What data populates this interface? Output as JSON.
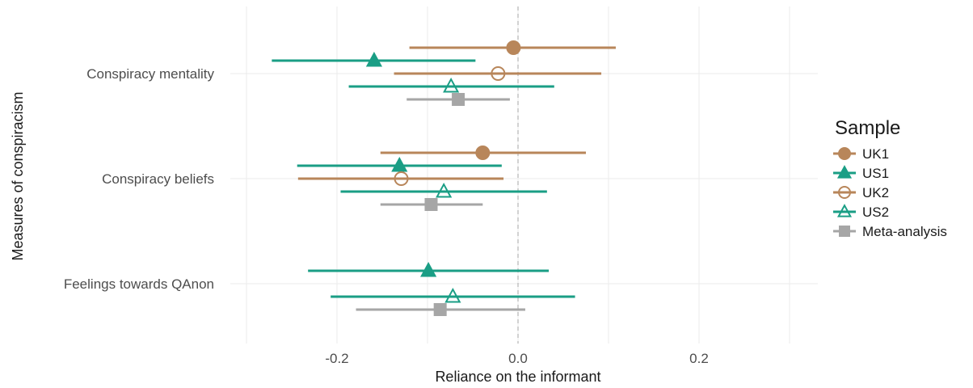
{
  "chart_data": {
    "type": "forest",
    "xlabel": "Reliance on the informant",
    "ylabel": "Measures of conspiracism",
    "xlim": [
      -0.3,
      0.33
    ],
    "x_ticks": [
      -0.2,
      0.0,
      0.2
    ],
    "x_tick_labels": [
      "-0.2",
      "0.0",
      "0.2"
    ],
    "reference_line": 0,
    "grid": true,
    "legend": {
      "title": "Sample",
      "position": "right"
    },
    "categories": [
      "Conspiracy mentality",
      "Conspiracy beliefs",
      "Feelings towards QAnon"
    ],
    "series": [
      {
        "name": "UK1",
        "color": "#b8865a",
        "shape": "circle",
        "filled": true,
        "points": [
          {
            "category": "Conspiracy mentality",
            "estimate": -0.005,
            "lower": -0.12,
            "upper": 0.108
          },
          {
            "category": "Conspiracy beliefs",
            "estimate": -0.039,
            "lower": -0.152,
            "upper": 0.075
          }
        ]
      },
      {
        "name": "US1",
        "color": "#1a9e85",
        "shape": "triangle",
        "filled": true,
        "points": [
          {
            "category": "Conspiracy mentality",
            "estimate": -0.159,
            "lower": -0.272,
            "upper": -0.047
          },
          {
            "category": "Conspiracy beliefs",
            "estimate": -0.131,
            "lower": -0.244,
            "upper": -0.018
          },
          {
            "category": "Feelings towards QAnon",
            "estimate": -0.099,
            "lower": -0.232,
            "upper": 0.034
          }
        ]
      },
      {
        "name": "UK2",
        "color": "#b8865a",
        "shape": "circle",
        "filled": false,
        "points": [
          {
            "category": "Conspiracy mentality",
            "estimate": -0.022,
            "lower": -0.137,
            "upper": 0.092
          },
          {
            "category": "Conspiracy beliefs",
            "estimate": -0.129,
            "lower": -0.243,
            "upper": -0.016
          }
        ]
      },
      {
        "name": "US2",
        "color": "#1a9e85",
        "shape": "triangle",
        "filled": false,
        "points": [
          {
            "category": "Conspiracy mentality",
            "estimate": -0.074,
            "lower": -0.187,
            "upper": 0.04
          },
          {
            "category": "Conspiracy beliefs",
            "estimate": -0.082,
            "lower": -0.196,
            "upper": 0.032
          },
          {
            "category": "Feelings towards QAnon",
            "estimate": -0.072,
            "lower": -0.207,
            "upper": 0.063
          }
        ]
      },
      {
        "name": "Meta-analysis",
        "color": "#a6a6a6",
        "shape": "square",
        "filled": true,
        "points": [
          {
            "category": "Conspiracy mentality",
            "estimate": -0.066,
            "lower": -0.123,
            "upper": -0.009
          },
          {
            "category": "Conspiracy beliefs",
            "estimate": -0.096,
            "lower": -0.152,
            "upper": -0.039
          },
          {
            "category": "Feelings towards QAnon",
            "estimate": -0.086,
            "lower": -0.179,
            "upper": 0.008
          }
        ]
      }
    ]
  }
}
